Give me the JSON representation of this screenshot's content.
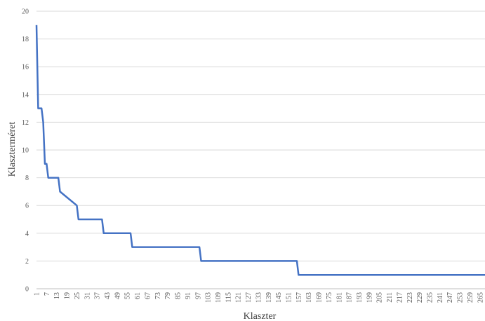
{
  "chart_data": {
    "type": "line",
    "title": "",
    "xlabel": "Klaszter",
    "ylabel": "Klaszterméret",
    "xlim": [
      1,
      268
    ],
    "ylim": [
      0,
      20
    ],
    "y_ticks": [
      0,
      2,
      4,
      6,
      8,
      10,
      12,
      14,
      16,
      18,
      20
    ],
    "x_ticks": [
      1,
      7,
      13,
      19,
      25,
      31,
      37,
      43,
      49,
      55,
      61,
      67,
      73,
      79,
      85,
      91,
      97,
      103,
      109,
      115,
      121,
      127,
      133,
      139,
      145,
      151,
      157,
      163,
      169,
      175,
      181,
      187,
      193,
      199,
      205,
      211,
      217,
      223,
      229,
      235,
      241,
      247,
      253,
      259,
      265
    ],
    "grid": true,
    "legend": "none",
    "series": [
      {
        "color": "#4472c4",
        "x": [
          1,
          2,
          3,
          4,
          5,
          6,
          7,
          8,
          9,
          14,
          15,
          25,
          26,
          40,
          41,
          57,
          58,
          98,
          99,
          156,
          157,
          268
        ],
        "y": [
          19,
          13,
          13,
          13,
          12,
          9,
          9,
          8,
          8,
          8,
          7,
          6,
          5,
          5,
          4,
          4,
          3,
          3,
          2,
          2,
          1,
          1
        ]
      }
    ]
  }
}
